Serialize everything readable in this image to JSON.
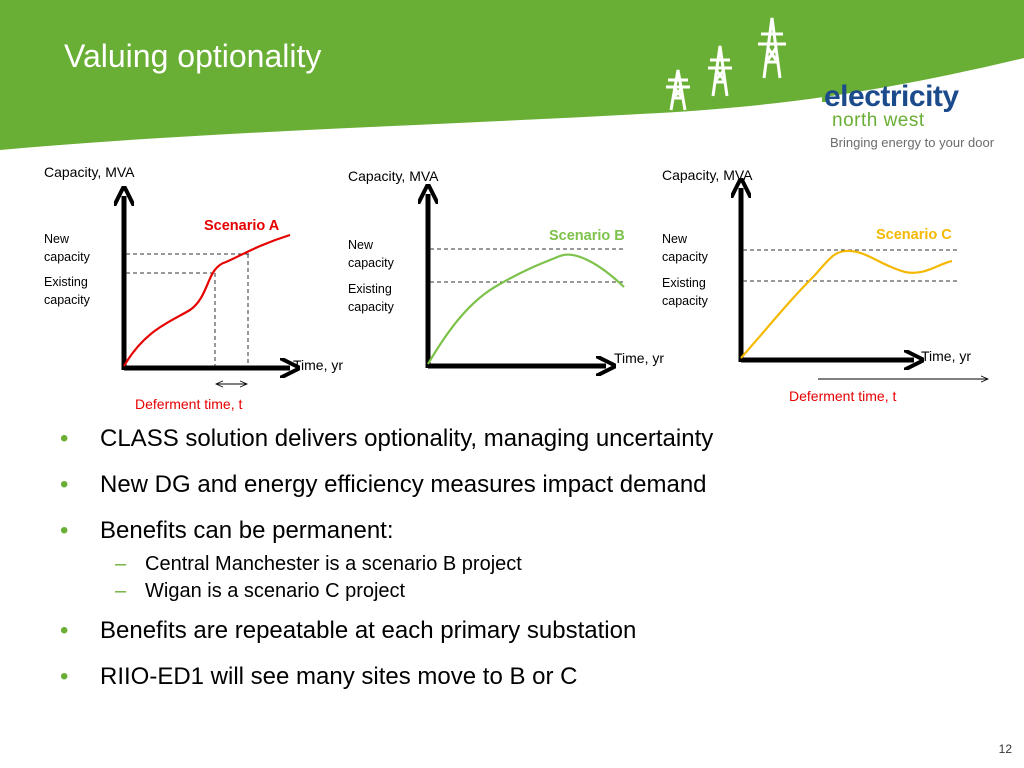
{
  "header": {
    "title": "Valuing optionality",
    "logo_main": "electricity",
    "logo_sub": "north west",
    "logo_tagline": "Bringing energy to your door"
  },
  "diagrams": [
    {
      "ylabel": "Capacity, MVA",
      "xlabel": "Time, yr",
      "new_capacity": "New capacity",
      "existing_capacity": "Existing capacity",
      "scenario": "Scenario A",
      "scenario_color": "#e60000",
      "deferment": "Deferment  time, t"
    },
    {
      "ylabel": "Capacity, MVA",
      "xlabel": "Time, yr",
      "new_capacity": "New capacity",
      "existing_capacity": "Existing capacity",
      "scenario": "Scenario B",
      "scenario_color": "#7dc24a"
    },
    {
      "ylabel": "Capacity, MVA",
      "xlabel": "Time, yr",
      "new_capacity": "New capacity",
      "existing_capacity": "Existing capacity",
      "scenario": "Scenario C",
      "scenario_color": "#f5b800",
      "deferment": "Deferment  time, t"
    }
  ],
  "bullets": [
    {
      "level": 1,
      "text": "CLASS solution delivers optionality, managing uncertainty"
    },
    {
      "level": 1,
      "text": "New DG and energy efficiency measures impact demand"
    },
    {
      "level": 1,
      "text": "Benefits can be permanent:"
    },
    {
      "level": 2,
      "text": "Central Manchester is a scenario B project"
    },
    {
      "level": 2,
      "text": "Wigan is a scenario C project"
    },
    {
      "level": 1,
      "text": "Benefits are repeatable at each primary substation"
    },
    {
      "level": 1,
      "text": "RIIO-ED1 will see many sites move to B or C"
    }
  ],
  "page_number": "12",
  "colors": {
    "header_green": "#6aaf35",
    "brand_blue": "#1c4b8c",
    "deferment_red": "#e60000"
  }
}
